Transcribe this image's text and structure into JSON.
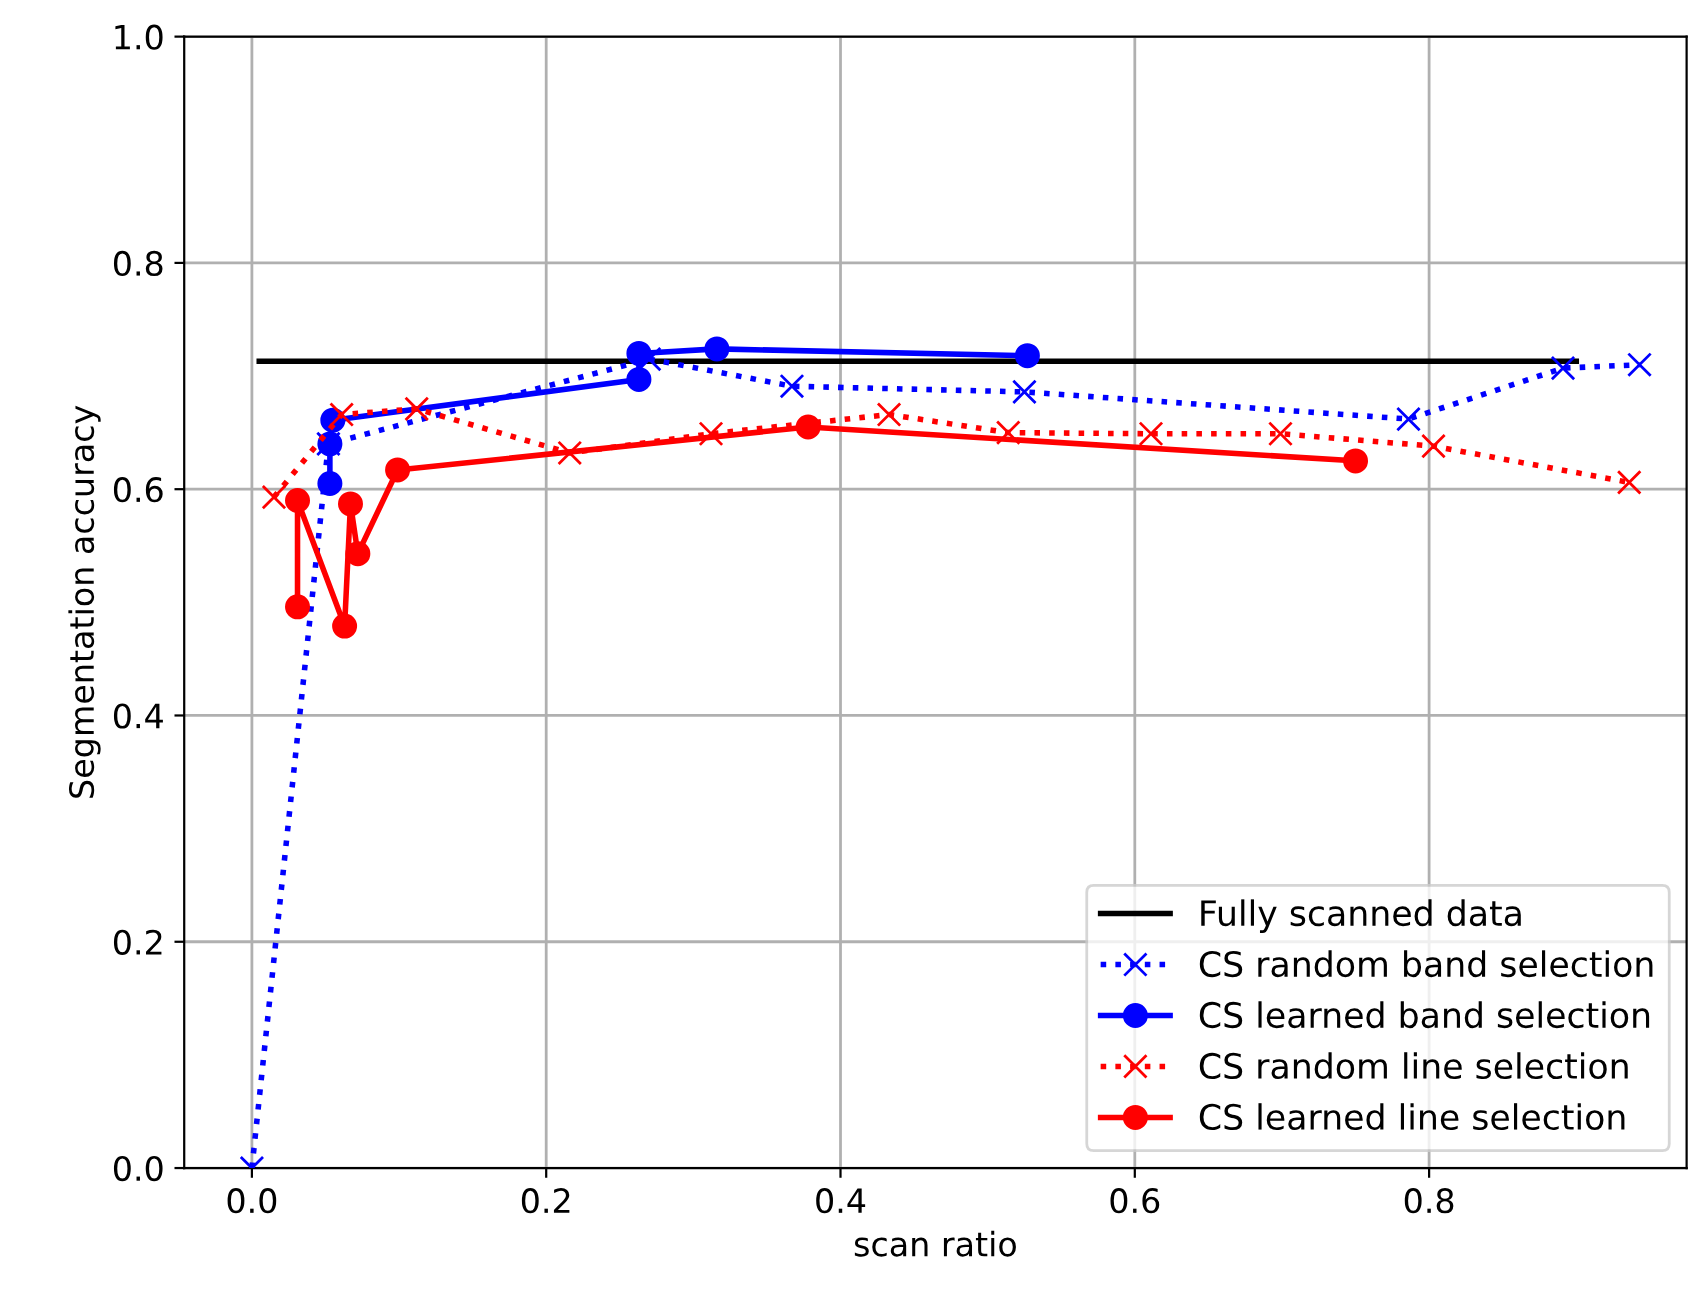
{
  "chart_data": {
    "type": "line",
    "xlabel": "scan ratio",
    "ylabel": "Segmentation accuracy",
    "xlim": [
      -0.046,
      0.975
    ],
    "ylim": [
      0,
      1.0
    ],
    "xticks": [
      {
        "value": 0,
        "label": "0.0"
      },
      0.2,
      0.4,
      0.6,
      0.8
    ],
    "yticks": [
      {
        "value": 0,
        "label": "0.0"
      },
      0.2,
      0.4,
      0.6,
      0.8,
      {
        "value": 1,
        "label": "1.0"
      }
    ],
    "grid": true,
    "legend": "bottom right",
    "series": [
      {
        "name": "Fully scanned data",
        "color": "#000000",
        "marker": "none",
        "line_style": "solid",
        "x": [
          0.005,
          0.9
        ],
        "values": [
          0.713,
          0.713
        ]
      },
      {
        "name": "CS random band selection",
        "color": "#0000ff",
        "marker": "cross",
        "line_style": "dotted",
        "x": [
          0,
          0.052,
          0.27,
          0.367,
          0.525,
          0.786,
          0.891,
          0.943
        ],
        "values": [
          0,
          0.64,
          0.715,
          0.691,
          0.686,
          0.662,
          0.707,
          0.71
        ]
      },
      {
        "name": "CS learned band selection",
        "color": "#0000ff",
        "marker": "circle",
        "line_style": "solid",
        "x": [
          0.053,
          0.053,
          0.055,
          0.263,
          0.263,
          0.316,
          0.527
        ],
        "values": [
          0.605,
          0.64,
          0.661,
          0.697,
          0.72,
          0.724,
          0.718
        ]
      },
      {
        "name": "CS random line selection",
        "color": "#ff0000",
        "marker": "cross",
        "line_style": "dotted",
        "x": [
          0.015,
          0.061,
          0.112,
          0.216,
          0.312,
          0.433,
          0.514,
          0.611,
          0.699,
          0.803,
          0.936
        ],
        "values": [
          0.593,
          0.666,
          0.671,
          0.632,
          0.649,
          0.666,
          0.65,
          0.649,
          0.649,
          0.638,
          0.606
        ]
      },
      {
        "name": "CS learned line selection",
        "color": "#ff0000",
        "marker": "circle",
        "line_style": "solid",
        "x": [
          0.031,
          0.031,
          0.063,
          0.067,
          0.072,
          0.099,
          0.378,
          0.75
        ],
        "values": [
          0.496,
          0.59,
          0.479,
          0.587,
          0.543,
          0.617,
          0.655,
          0.625
        ]
      }
    ]
  }
}
